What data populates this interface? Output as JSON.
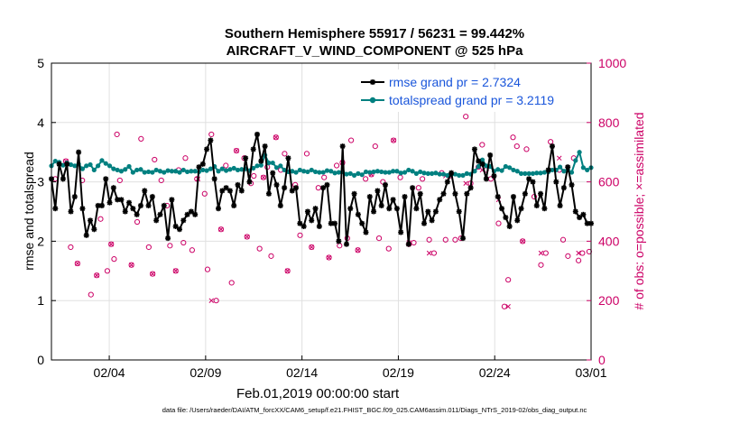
{
  "chart_data": {
    "type": "line",
    "title": "Southern Hemisphere 55917 / 56231 = 99.442%",
    "subtitle": "AIRCRAFT_V_WIND_COMPONENT @ 525 hPa",
    "xlabel": "Feb.01,2019 00:00:00 start",
    "ylabel": "rmse and totalspread",
    "y2label": "# of obs: o=possible; ×=assimilated",
    "xlim": [
      0,
      28
    ],
    "ylim": [
      0,
      5
    ],
    "y2lim": [
      0,
      1000
    ],
    "x_ticks": [
      3,
      8,
      13,
      18,
      23,
      28
    ],
    "x_tick_labels": [
      "02/04",
      "02/09",
      "02/14",
      "02/19",
      "02/24",
      "03/01"
    ],
    "y_ticks": [
      0,
      1,
      2,
      3,
      4,
      5
    ],
    "y_tick_labels": [
      "0",
      "1",
      "2",
      "3",
      "4",
      "5"
    ],
    "y2_ticks": [
      0,
      200,
      400,
      600,
      800,
      1000
    ],
    "y2_tick_labels": [
      "0",
      "200",
      "400",
      "600",
      "800",
      "1000"
    ],
    "grid": true,
    "legend_position": "top-right",
    "legend": [
      "rmse grand pr = 2.7324",
      "totalspread grand pr = 3.2119"
    ],
    "series": [
      {
        "name": "rmse",
        "color": "#000000",
        "marker": "star",
        "values": [
          3.05,
          2.55,
          3.3,
          3.05,
          3.3,
          2.5,
          2.75,
          3.5,
          2.55,
          2.1,
          2.35,
          2.2,
          2.6,
          2.6,
          3.05,
          2.65,
          2.9,
          2.7,
          2.7,
          2.5,
          2.65,
          2.55,
          2.45,
          2.6,
          2.85,
          2.6,
          2.75,
          2.35,
          2.45,
          2.6,
          2.05,
          2.7,
          2.25,
          2.2,
          2.35,
          2.45,
          2.5,
          2.45,
          3.25,
          3.3,
          3.55,
          3.7,
          3.05,
          2.55,
          2.85,
          2.9,
          2.85,
          2.6,
          2.95,
          2.85,
          3.4,
          3.0,
          3.55,
          3.8,
          3.35,
          3.6,
          2.8,
          3.15,
          2.95,
          2.6,
          2.9,
          3.4,
          2.85,
          2.9,
          2.3,
          2.25,
          2.5,
          2.35,
          2.55,
          2.25,
          2.9,
          2.95,
          2.3,
          2.3,
          2.0,
          3.6,
          1.95,
          2.55,
          2.8,
          2.45,
          2.3,
          2.15,
          2.75,
          2.5,
          2.85,
          2.6,
          2.95,
          2.55,
          2.7,
          2.55,
          2.15,
          2.75,
          1.95,
          2.9,
          2.55,
          2.8,
          2.3,
          2.5,
          2.35,
          2.5,
          2.7,
          2.8,
          3.0,
          3.15,
          2.8,
          2.5,
          2.05,
          2.8,
          2.9,
          3.55,
          3.35,
          3.3,
          3.05,
          3.45,
          3.1,
          2.75,
          2.55,
          2.4,
          2.25,
          2.75,
          2.35,
          2.55,
          2.8,
          3.05,
          3.0,
          2.6,
          2.8,
          2.55,
          3.2,
          3.6,
          3.0,
          2.6,
          2.9,
          3.25,
          2.95,
          2.5,
          2.4,
          2.45,
          2.3,
          2.3
        ]
      },
      {
        "name": "totalspread",
        "color": "#008080",
        "marker": "circle",
        "values": [
          3.27,
          3.35,
          3.33,
          3.28,
          3.32,
          3.29,
          3.27,
          3.3,
          3.22,
          3.27,
          3.29,
          3.2,
          3.27,
          3.36,
          3.31,
          3.27,
          3.22,
          3.2,
          3.18,
          3.21,
          3.26,
          3.16,
          3.2,
          3.21,
          3.16,
          3.17,
          3.16,
          3.2,
          3.18,
          3.16,
          3.19,
          3.18,
          3.18,
          3.16,
          3.2,
          3.17,
          3.18,
          3.18,
          3.17,
          3.2,
          3.19,
          3.22,
          3.26,
          3.18,
          3.22,
          3.19,
          3.21,
          3.23,
          3.2,
          3.21,
          3.22,
          3.19,
          3.23,
          3.27,
          3.28,
          3.45,
          3.32,
          3.32,
          3.24,
          3.27,
          3.2,
          3.17,
          3.18,
          3.16,
          3.2,
          3.18,
          3.17,
          3.2,
          3.17,
          3.16,
          3.16,
          3.19,
          3.18,
          3.15,
          3.16,
          3.17,
          3.13,
          3.14,
          3.11,
          3.14,
          3.12,
          3.17,
          3.16,
          3.17,
          3.18,
          3.17,
          3.16,
          3.16,
          3.18,
          3.18,
          3.15,
          3.16,
          3.2,
          3.18,
          3.14,
          3.17,
          3.15,
          3.14,
          3.14,
          3.15,
          3.13,
          3.13,
          3.11,
          3.12,
          3.13,
          3.11,
          3.11,
          3.14,
          3.13,
          3.18,
          3.26,
          3.37,
          3.27,
          3.26,
          3.18,
          3.21,
          3.19,
          3.26,
          3.24,
          3.2,
          3.18,
          3.14,
          3.14,
          3.14,
          3.14,
          3.15,
          3.15,
          3.16,
          3.17,
          3.2,
          3.2,
          3.25,
          3.18,
          3.2,
          3.16,
          3.36,
          3.5,
          3.24,
          3.2,
          3.24
        ]
      },
      {
        "name": "possible",
        "color": "#cc0066",
        "marker": "open-circle",
        "axis": "right",
        "x": [
          0.2,
          0.75,
          1.0,
          1.35,
          1.6,
          2.05,
          2.35,
          2.55,
          2.9,
          3.1,
          3.25,
          3.4,
          3.55,
          4.15,
          4.45,
          4.65,
          5.05,
          5.25,
          5.35,
          5.7,
          6.0,
          6.15,
          6.45,
          6.6,
          6.85,
          6.95,
          7.3,
          7.55,
          7.95,
          8.1,
          8.3,
          8.55,
          8.8,
          9.05,
          9.35,
          9.6,
          10.0,
          10.15,
          10.35,
          10.5,
          10.8,
          11.0,
          11.2,
          11.4,
          11.65,
          11.9,
          12.1,
          12.25,
          12.65,
          12.9,
          13.25,
          13.5,
          13.85,
          14.15,
          14.4,
          14.8,
          14.95,
          15.1,
          15.35,
          15.55,
          15.9,
          16.3,
          16.6,
          16.8,
          17.0,
          17.2,
          17.5,
          17.75,
          18.1,
          18.55,
          18.8,
          19.05,
          19.25,
          19.6,
          19.85,
          20.25,
          20.45,
          20.65,
          20.95,
          21.25,
          21.5,
          21.75,
          22.15,
          22.35,
          22.55,
          22.8,
          23.2,
          23.5,
          23.7,
          23.95,
          24.15,
          24.45,
          24.65,
          25.05,
          25.4,
          25.65,
          25.9,
          26.35,
          26.55,
          26.8,
          27.1,
          27.35,
          27.55,
          27.9
        ],
        "values": [
          610,
          670,
          380,
          325,
          605,
          220,
          285,
          475,
          300,
          390,
          340,
          760,
          605,
          320,
          465,
          745,
          380,
          290,
          675,
          605,
          520,
          385,
          300,
          640,
          395,
          680,
          370,
          610,
          560,
          305,
          760,
          200,
          440,
          655,
          260,
          705,
          680,
          415,
          595,
          620,
          375,
          615,
          650,
          350,
          750,
          640,
          695,
          300,
          590,
          420,
          695,
          380,
          580,
          615,
          345,
          655,
          385,
          665,
          410,
          740,
          370,
          610,
          625,
          720,
          410,
          600,
          375,
          740,
          615,
          390,
          395,
          580,
          610,
          405,
          360,
          630,
          405,
          620,
          405,
          410,
          820,
          595,
          650,
          725,
          640,
          610,
          460,
          180,
          270,
          750,
          720,
          400,
          710,
          550,
          320,
          360,
          735,
          640,
          405,
          350,
          680,
          335,
          360,
          365
        ]
      },
      {
        "name": "assimilated",
        "color": "#cc0066",
        "marker": "x",
        "axis": "right",
        "x": [
          0.75,
          1.35,
          2.35,
          3.1,
          4.15,
          5.25,
          6.45,
          7.6,
          8.3,
          8.8,
          9.6,
          10.15,
          11.0,
          11.65,
          12.25,
          13.5,
          14.4,
          15.1,
          15.9,
          16.6,
          17.75,
          18.55,
          19.6,
          20.45,
          21.5,
          22.35,
          23.2,
          23.7,
          24.45,
          25.4,
          26.35,
          27.35
        ],
        "values": [
          670,
          325,
          285,
          390,
          320,
          290,
          300,
          610,
          200,
          440,
          705,
          415,
          615,
          750,
          300,
          380,
          345,
          665,
          370,
          625,
          740,
          395,
          360,
          620,
          595,
          640,
          540,
          180,
          400,
          360,
          680,
          360
        ]
      }
    ]
  },
  "footer": "data file: /Users/raeder/DAI/ATM_forcXX/CAM6_setup/f.e21.FHIST_BGC.f09_025.CAM6assim.011/Diags_NTrS_2019-02/obs_diag_output.nc"
}
